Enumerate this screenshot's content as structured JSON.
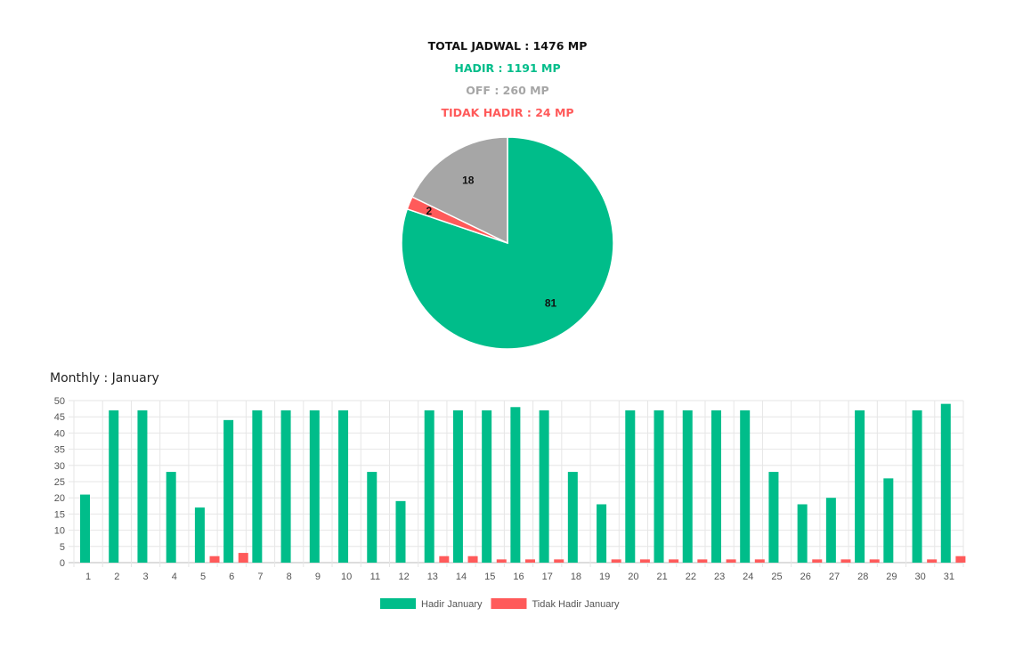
{
  "summary": {
    "total_label": "TOTAL JADWAL : 1476 MP",
    "hadir_label": "HADIR : 1191 MP",
    "off_label": "OFF : 260 MP",
    "tidak_hadir_label": "TIDAK HADIR : 24 MP"
  },
  "colors": {
    "total": "#111111",
    "hadir": "#00bd8a",
    "off": "#a6a6a6",
    "tidak_hadir": "#ff5a5a"
  },
  "monthly_title": "Monthly : January",
  "chart_data": [
    {
      "type": "pie",
      "categories": [
        "Hadir",
        "Tidak Hadir",
        "Off"
      ],
      "values": [
        81,
        2,
        18
      ],
      "data_labels": [
        "81",
        "2",
        "18"
      ],
      "colors": [
        "#00bd8a",
        "#ff5a5a",
        "#a6a6a6"
      ]
    },
    {
      "type": "bar",
      "categories": [
        "1",
        "2",
        "3",
        "4",
        "5",
        "6",
        "7",
        "8",
        "9",
        "10",
        "11",
        "12",
        "13",
        "14",
        "15",
        "16",
        "17",
        "18",
        "19",
        "20",
        "21",
        "22",
        "23",
        "24",
        "25",
        "26",
        "27",
        "28",
        "29",
        "30",
        "31"
      ],
      "series": [
        {
          "name": "Hadir January",
          "color": "#00bd8a",
          "values": [
            21,
            47,
            47,
            28,
            17,
            44,
            47,
            47,
            47,
            47,
            28,
            19,
            47,
            47,
            47,
            48,
            47,
            28,
            18,
            47,
            47,
            47,
            47,
            47,
            28,
            18,
            20,
            47,
            26,
            47,
            49
          ]
        },
        {
          "name": "Tidak Hadir January",
          "color": "#ff5a5a",
          "values": [
            0,
            0,
            0,
            0,
            2,
            3,
            0,
            0,
            0,
            0,
            0,
            0,
            2,
            2,
            1,
            1,
            1,
            0,
            1,
            1,
            1,
            1,
            1,
            1,
            0,
            1,
            1,
            1,
            0,
            1,
            2
          ]
        }
      ],
      "ylim": [
        0,
        50
      ],
      "yticks": [
        0,
        5,
        10,
        15,
        20,
        25,
        30,
        35,
        40,
        45,
        50
      ],
      "grid": true,
      "legend": "bottom"
    }
  ]
}
